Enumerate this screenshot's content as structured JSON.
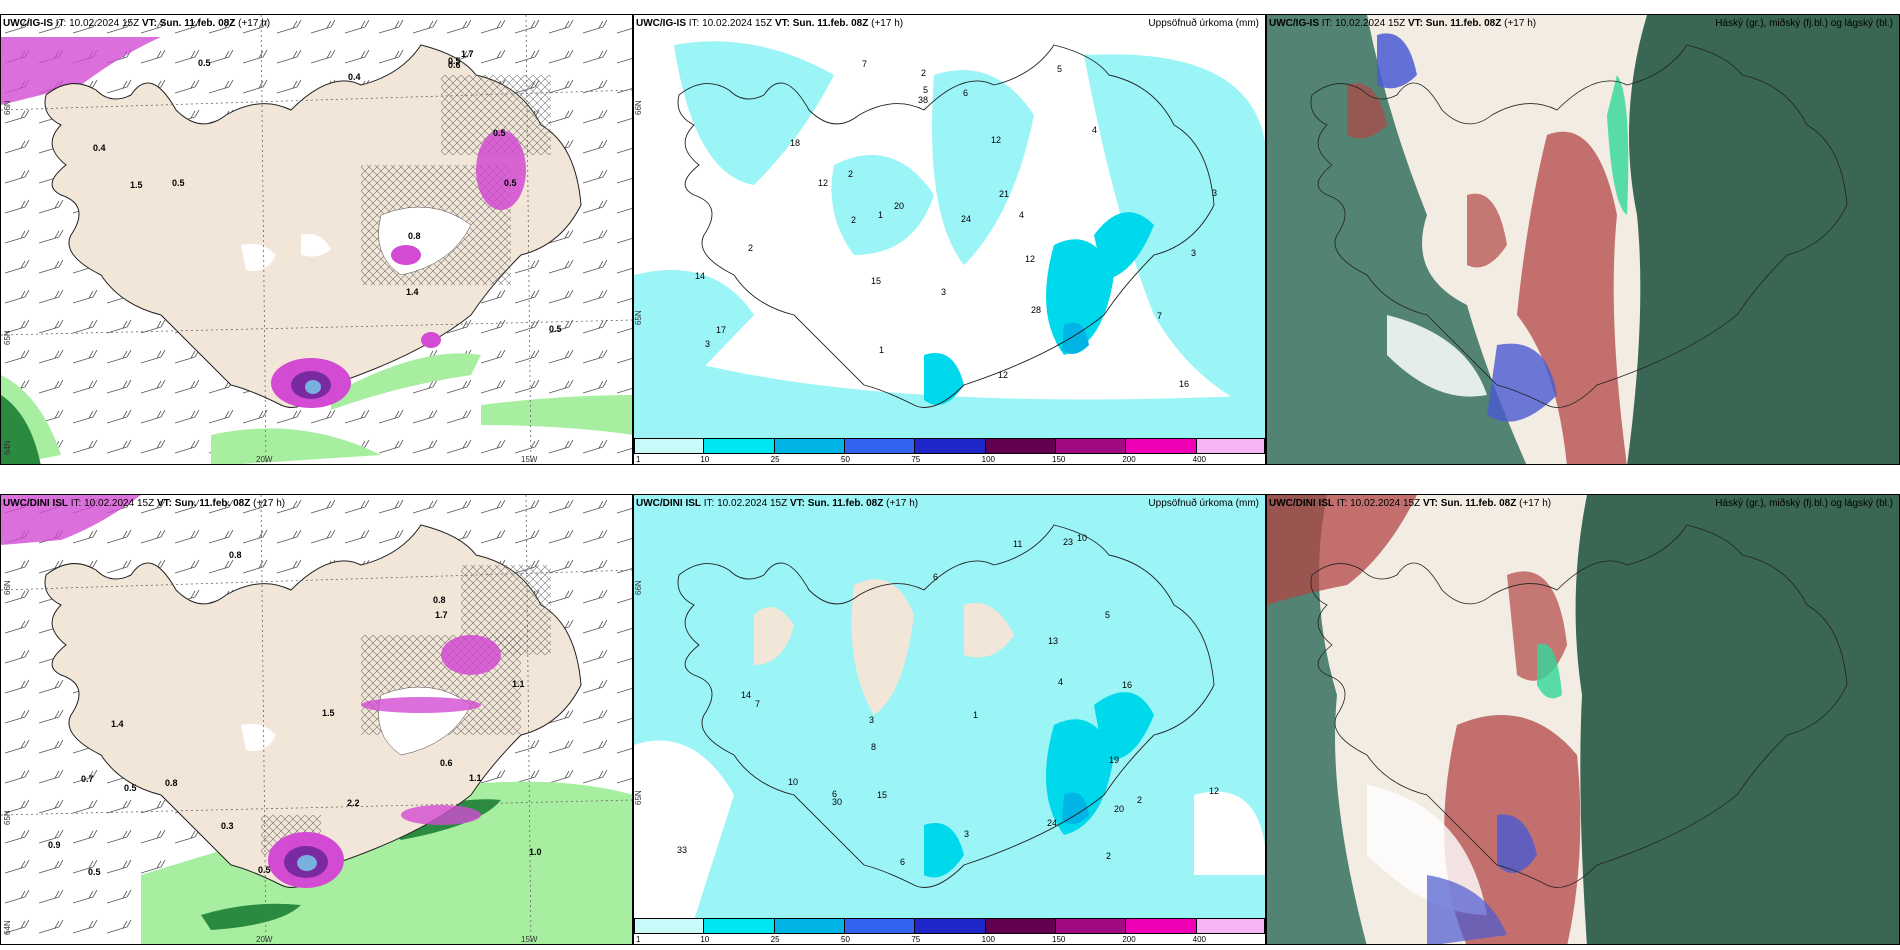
{
  "panels": [
    {
      "id": "a1",
      "model": "UWC/IG-IS",
      "it": "10.02.2024 15Z",
      "vt": "Sun. 11.feb. 08Z",
      "lead": "(+17 h)",
      "right": ""
    },
    {
      "id": "a2",
      "model": "UWC/IG-IS",
      "it": "10.02.2024 15Z",
      "vt": "Sun. 11.feb. 08Z",
      "lead": "(+17 h)",
      "right": "Uppsöfnuð úrkoma (mm)"
    },
    {
      "id": "a3",
      "model": "UWC/IG-IS",
      "it": "10.02.2024 15Z",
      "vt": "Sun. 11.feb. 08Z",
      "lead": "(+17 h)",
      "right": "Háský (gr.), miðský (fj.bl.) og lágský (bl.)"
    },
    {
      "id": "b1",
      "model": "UWC/DINI ISL",
      "it": "10.02.2024 15Z",
      "vt": "Sun. 11.feb. 08Z",
      "lead": "(+17 h)",
      "right": ""
    },
    {
      "id": "b2",
      "model": "UWC/DINI ISL",
      "it": "10.02.2024 15Z",
      "vt": "Sun. 11.feb. 08Z",
      "lead": "(+17 h)",
      "right": "Uppsöfnuð úrkoma (mm)"
    },
    {
      "id": "b3",
      "model": "UWC/DINI ISL",
      "it": "10.02.2024 15Z",
      "vt": "Sun. 11.feb. 08Z",
      "lead": "(+17 h)",
      "right": "Háský (gr.), miðský (fj.bl.) og lágský (bl.)"
    }
  ],
  "labels": {
    "it": "IT:",
    "vt": "VT:"
  },
  "graticule": {
    "lat_labels": [
      "66N",
      "65N",
      "64N"
    ],
    "lon_labels": [
      "20W",
      "15W"
    ]
  },
  "legend": {
    "ticks": [
      "1",
      "10",
      "25",
      "50",
      "75",
      "100",
      "150",
      "200",
      "400"
    ],
    "colors": [
      "#c8fafa",
      "#00e6f0",
      "#00b4e6",
      "#3264f0",
      "#1e28c8",
      "#640050",
      "#a00a82",
      "#f000b4",
      "#f5b4f5"
    ]
  },
  "colors": {
    "land": "#f2e6d8",
    "precip_light": "#9bf4f6",
    "precip_mid": "#00d8ec",
    "snow": "#d24bd2",
    "rain": "#a8eea0",
    "cloud_low": "#2a6a58",
    "cloud_high": "#b24646",
    "cloud_mid": "#4a5ad2"
  },
  "values": {
    "a1": [
      "1.7",
      "0.4",
      "0.6",
      "0.5",
      "0.5",
      "0.5",
      "0.5",
      "0.4",
      "1.5",
      "1.4",
      "0.8",
      "0.5",
      "0.5"
    ],
    "a2": [
      "3",
      "2",
      "1",
      "2",
      "5",
      "2",
      "3",
      "3",
      "12",
      "7",
      "17",
      "24",
      "12",
      "14",
      "38",
      "20",
      "18",
      "15",
      "12",
      "16",
      "21",
      "28",
      "6",
      "3",
      "4",
      "7",
      "1",
      "2",
      "5",
      "12",
      "4"
    ],
    "b1": [
      "0.9",
      "0.8",
      "0.5",
      "0.5",
      "0.6",
      "0.3",
      "1.7",
      "1.1",
      "1.0",
      "0.7",
      "0.8",
      "1.4",
      "1.5",
      "1.1",
      "0.8",
      "0.5",
      "2.2"
    ],
    "b2": [
      "6",
      "5",
      "4",
      "2",
      "3",
      "6",
      "10",
      "24",
      "33",
      "30",
      "14",
      "19",
      "16",
      "12",
      "7",
      "13",
      "11",
      "15",
      "10",
      "8",
      "20",
      "23",
      "3",
      "2",
      "1",
      "6"
    ]
  }
}
